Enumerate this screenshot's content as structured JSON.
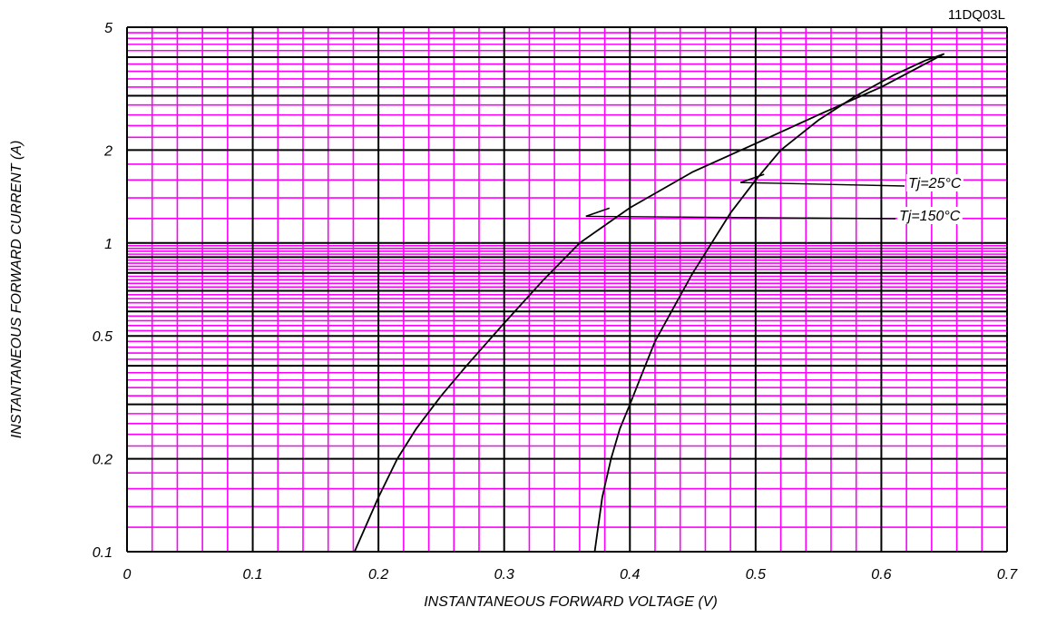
{
  "chart_data": {
    "type": "line",
    "part_number": "11DQ03L",
    "xlabel": "INSTANTANEOUS FORWARD VOLTAGE (V)",
    "ylabel": "INSTANTANEOUS FORWARD CURRENT (A)",
    "xlim": [
      0,
      0.7
    ],
    "ylim": [
      0.1,
      5
    ],
    "y_scale": "log",
    "grid": true,
    "colors": {
      "minor_grid": "#ff00ff",
      "major_grid": "#000000",
      "curve": "#000000",
      "background": "#ffffff"
    },
    "x_ticks": [
      "0",
      "0.1",
      "0.2",
      "0.3",
      "0.4",
      "0.5",
      "0.6",
      "0.7"
    ],
    "x_tick_values": [
      0,
      0.1,
      0.2,
      0.3,
      0.4,
      0.5,
      0.6,
      0.7
    ],
    "y_ticks": [
      "0.1",
      "0.2",
      "0.5",
      "1",
      "2",
      "5"
    ],
    "y_tick_values": [
      0.1,
      0.2,
      0.5,
      1,
      2,
      5
    ],
    "series": [
      {
        "name": "Tj=25°C",
        "x": [
          0.372,
          0.378,
          0.385,
          0.392,
          0.4,
          0.41,
          0.42,
          0.435,
          0.45,
          0.465,
          0.48,
          0.5,
          0.52,
          0.55,
          0.58,
          0.61,
          0.635,
          0.65
        ],
        "y": [
          0.1,
          0.15,
          0.2,
          0.25,
          0.3,
          0.38,
          0.48,
          0.62,
          0.8,
          1.0,
          1.25,
          1.6,
          2.0,
          2.5,
          3.0,
          3.5,
          3.9,
          4.1
        ]
      },
      {
        "name": "Tj=150°C",
        "x": [
          0.181,
          0.2,
          0.215,
          0.23,
          0.25,
          0.27,
          0.3,
          0.33,
          0.36,
          0.4,
          0.45,
          0.5,
          0.55,
          0.6,
          0.65
        ],
        "y": [
          0.1,
          0.15,
          0.2,
          0.25,
          0.32,
          0.4,
          0.55,
          0.75,
          1.0,
          1.3,
          1.7,
          2.1,
          2.6,
          3.2,
          4.1
        ]
      }
    ]
  }
}
